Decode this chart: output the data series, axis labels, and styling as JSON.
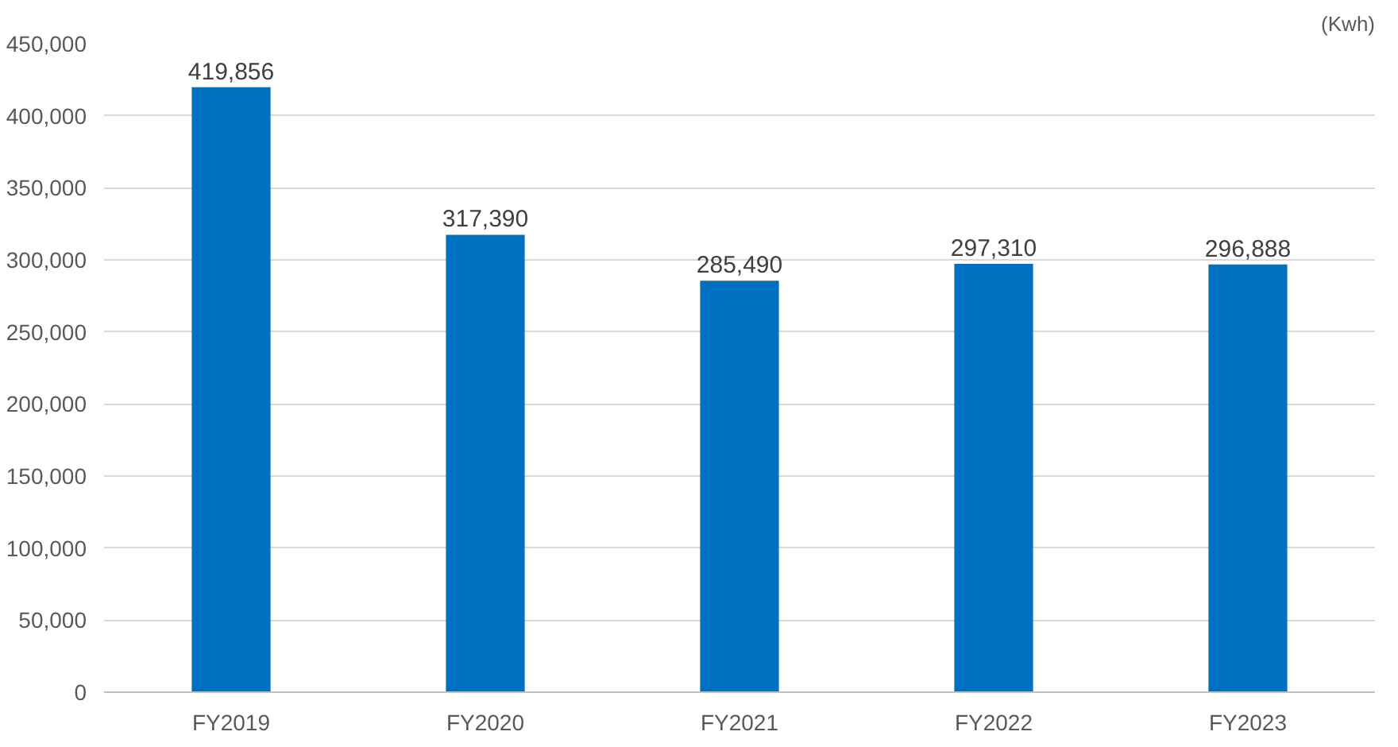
{
  "chart_data": {
    "type": "bar",
    "ylabel": "(Kwh)",
    "categories": [
      "FY2019",
      "FY2020",
      "FY2021",
      "FY2022",
      "FY2023"
    ],
    "values": [
      419856,
      317390,
      285490,
      297310,
      296888
    ],
    "color": "#0070c0",
    "ylim": [
      0,
      450000
    ],
    "yticks": [
      {
        "value": 0,
        "label": "0"
      },
      {
        "value": 50000,
        "label": "50,000"
      },
      {
        "value": 100000,
        "label": "100,000"
      },
      {
        "value": 150000,
        "label": "150,000"
      },
      {
        "value": 200000,
        "label": "200,000"
      },
      {
        "value": 250000,
        "label": "250,000"
      },
      {
        "value": 300000,
        "label": "300,000"
      },
      {
        "value": 350000,
        "label": "350,000"
      },
      {
        "value": 400000,
        "label": "400,000"
      },
      {
        "value": 450000,
        "label": "450,000"
      }
    ],
    "value_labels": [
      "419,856",
      "317,390",
      "285,490",
      "297,310",
      "296,888"
    ],
    "grid": "y"
  }
}
